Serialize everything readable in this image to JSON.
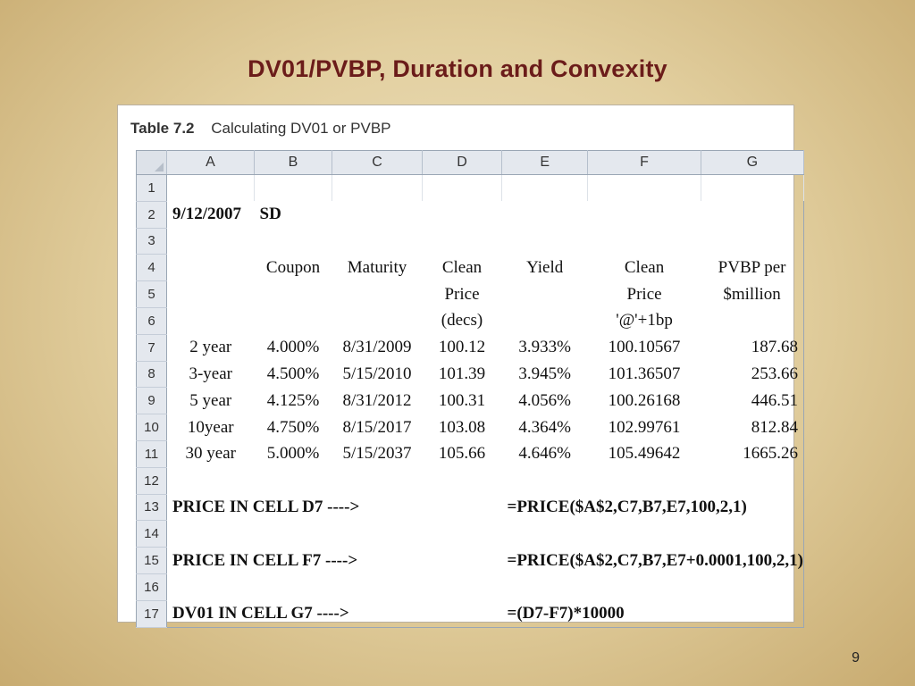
{
  "slide": {
    "title": "DV01/PVBP, Duration and Convexity",
    "page_number": "9"
  },
  "table": {
    "caption_number": "Table 7.2",
    "caption_text": "Calculating DV01 or PVBP",
    "columns": [
      "A",
      "B",
      "C",
      "D",
      "E",
      "F",
      "G"
    ],
    "rows": [
      {
        "num": "1",
        "cells": [
          "",
          "",
          "",
          "",
          "",
          "",
          ""
        ]
      },
      {
        "num": "2",
        "cells": [
          "9/12/2007",
          "SD",
          "",
          "",
          "",
          "",
          ""
        ]
      },
      {
        "num": "3",
        "cells": [
          "",
          "",
          "",
          "",
          "",
          "",
          ""
        ]
      },
      {
        "num": "4",
        "cells": [
          "",
          "Coupon",
          "Maturity",
          "Clean",
          "Yield",
          "Clean",
          "PVBP per"
        ]
      },
      {
        "num": "5",
        "cells": [
          "",
          "",
          "",
          "Price",
          "",
          "Price",
          "$million"
        ]
      },
      {
        "num": "6",
        "cells": [
          "",
          "",
          "",
          "(decs)",
          "",
          "'@'+1bp",
          ""
        ]
      },
      {
        "num": "7",
        "cells": [
          "2 year",
          "4.000%",
          "8/31/2009",
          "100.12",
          "3.933%",
          "100.10567",
          "187.68"
        ]
      },
      {
        "num": "8",
        "cells": [
          "3-year",
          "4.500%",
          "5/15/2010",
          "101.39",
          "3.945%",
          "101.36507",
          "253.66"
        ]
      },
      {
        "num": "9",
        "cells": [
          "5 year",
          "4.125%",
          "8/31/2012",
          "100.31",
          "4.056%",
          "100.26168",
          "446.51"
        ]
      },
      {
        "num": "10",
        "cells": [
          "10year",
          "4.750%",
          "8/15/2017",
          "103.08",
          "4.364%",
          "102.99761",
          "812.84"
        ]
      },
      {
        "num": "11",
        "cells": [
          "30 year",
          "5.000%",
          "5/15/2037",
          "105.66",
          "4.646%",
          "105.49642",
          "1665.26"
        ]
      },
      {
        "num": "12",
        "label": "",
        "formula": ""
      },
      {
        "num": "13",
        "label": "PRICE IN CELL D7 ---->",
        "formula": "=PRICE($A$2,C7,B7,E7,100,2,1)"
      },
      {
        "num": "14",
        "label": "",
        "formula": ""
      },
      {
        "num": "15",
        "label": "PRICE IN CELL F7 ---->",
        "formula": "=PRICE($A$2,C7,B7,E7+0.0001,100,2,1)"
      },
      {
        "num": "16",
        "label": "",
        "formula": ""
      },
      {
        "num": "17",
        "label": "DV01 IN CELL G7 ---->",
        "formula": "=(D7-F7)*10000"
      }
    ]
  }
}
